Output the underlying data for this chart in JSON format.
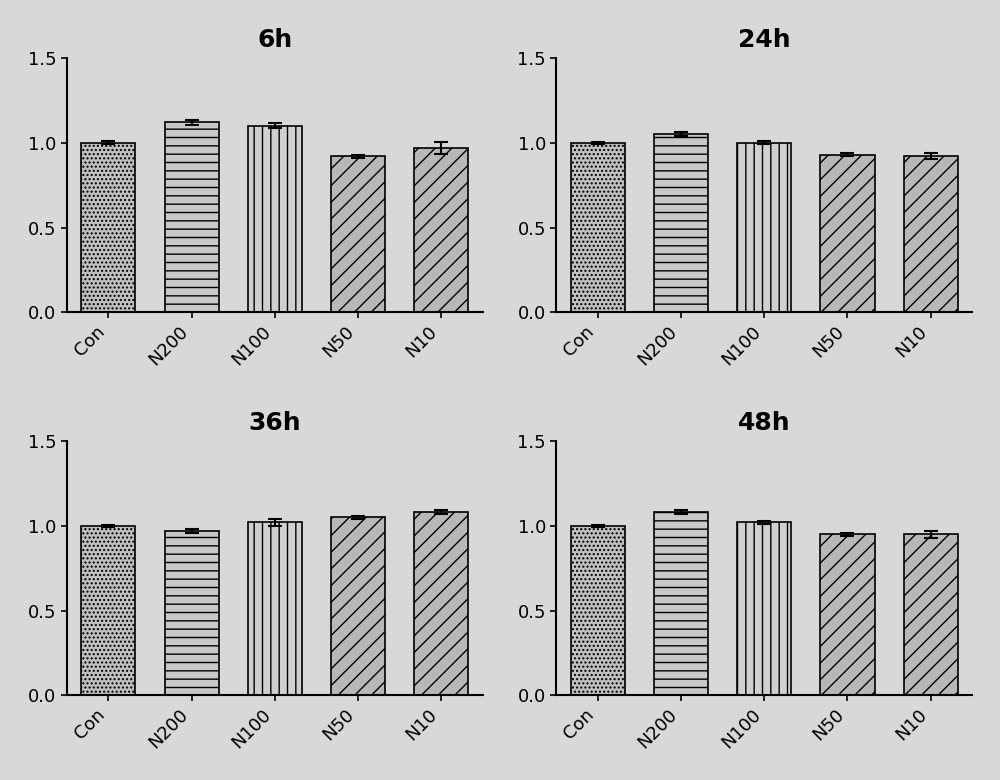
{
  "subplots": [
    {
      "title": "6h",
      "categories": [
        "Con",
        "N200",
        "N100",
        "N50",
        "N10"
      ],
      "values": [
        1.0,
        1.12,
        1.1,
        0.92,
        0.97
      ],
      "errors": [
        0.008,
        0.015,
        0.015,
        0.01,
        0.035
      ]
    },
    {
      "title": "24h",
      "categories": [
        "Con",
        "N200",
        "N100",
        "N50",
        "N10"
      ],
      "values": [
        1.0,
        1.05,
        1.0,
        0.93,
        0.92
      ],
      "errors": [
        0.005,
        0.012,
        0.008,
        0.01,
        0.018
      ]
    },
    {
      "title": "36h",
      "categories": [
        "Con",
        "N200",
        "N100",
        "N50",
        "N10"
      ],
      "values": [
        1.0,
        0.97,
        1.02,
        1.05,
        1.08
      ],
      "errors": [
        0.005,
        0.01,
        0.022,
        0.01,
        0.012
      ]
    },
    {
      "title": "48h",
      "categories": [
        "Con",
        "N200",
        "N100",
        "N50",
        "N10"
      ],
      "values": [
        1.0,
        1.08,
        1.02,
        0.95,
        0.95
      ],
      "errors": [
        0.005,
        0.012,
        0.01,
        0.008,
        0.022
      ]
    }
  ],
  "ylim": [
    0.0,
    1.5
  ],
  "yticks": [
    0.0,
    0.5,
    1.0,
    1.5
  ],
  "background_color": "#d8d8d8",
  "plot_bg_color": "#d8d8d8",
  "bar_edge_color": "#000000",
  "title_fontsize": 18,
  "tick_fontsize": 13,
  "bar_width": 0.65,
  "bar_facecolor": "#b0b0b0",
  "hatch_patterns": [
    "....",
    "--",
    "||",
    "//",
    "//"
  ],
  "hatch_colors": [
    "#000000",
    "#000000",
    "#000000",
    "#000000",
    "#000000"
  ]
}
